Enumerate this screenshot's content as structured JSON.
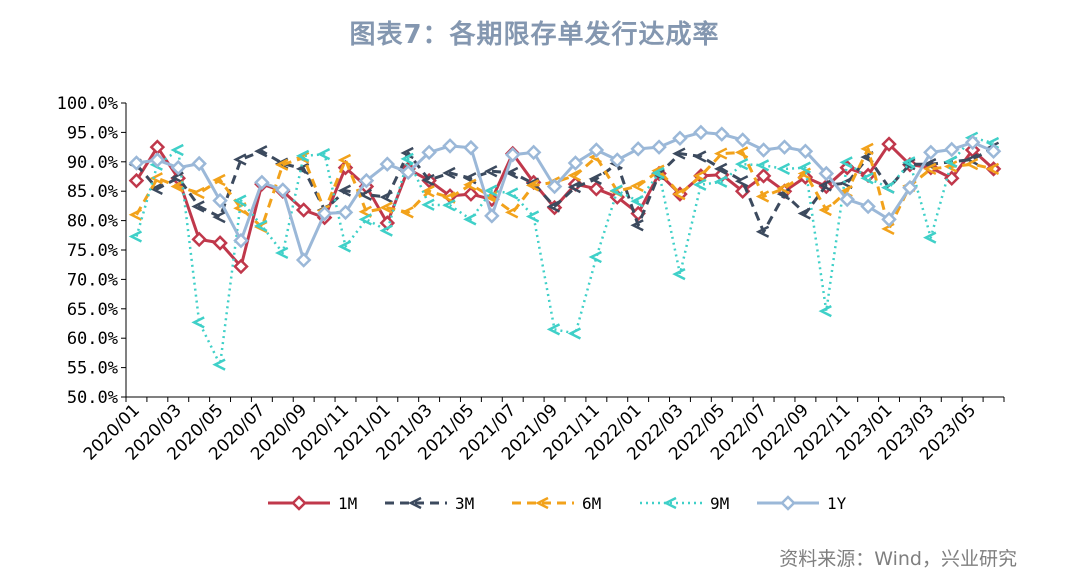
{
  "title": "图表7：各期限存单发行达成率",
  "source": "资料来源：Wind，兴业研究",
  "chart_data": {
    "type": "line",
    "title": "图表7：各期限存单发行达成率",
    "ylim": [
      50,
      100
    ],
    "y_ticks": [
      "100.0%",
      "95.0%",
      "90.0%",
      "85.0%",
      "80.0%",
      "75.0%",
      "70.0%",
      "65.0%",
      "60.0%",
      "55.0%",
      "50.0%"
    ],
    "x": [
      "2020/01",
      "2020/02",
      "2020/03",
      "2020/04",
      "2020/05",
      "2020/06",
      "2020/07",
      "2020/08",
      "2020/09",
      "2020/10",
      "2020/11",
      "2020/12",
      "2021/01",
      "2021/02",
      "2021/03",
      "2021/04",
      "2021/05",
      "2021/06",
      "2021/07",
      "2021/08",
      "2021/09",
      "2021/10",
      "2021/11",
      "2021/12",
      "2022/01",
      "2022/02",
      "2022/03",
      "2022/04",
      "2022/05",
      "2022/06",
      "2022/07",
      "2022/08",
      "2022/09",
      "2022/10",
      "2022/11",
      "2022/12",
      "2023/01",
      "2023/02",
      "2023/03",
      "2023/04",
      "2023/05",
      "2023/06"
    ],
    "x_tick_labels": [
      "2020/01",
      "2020/03",
      "2020/05",
      "2020/07",
      "2020/09",
      "2020/11",
      "2021/01",
      "2021/03",
      "2021/05",
      "2021/07",
      "2021/09",
      "2021/11",
      "2022/01",
      "2022/03",
      "2022/05",
      "2022/07",
      "2022/09",
      "2022/11",
      "2023/01",
      "2023/03",
      "2023/05"
    ],
    "grid": false,
    "legend_position": "bottom",
    "series": [
      {
        "name": "1M",
        "color": "#c0384b",
        "style": "solid",
        "marker": "diamond",
        "values": [
          86.8,
          92.5,
          87.2,
          76.8,
          76.2,
          72.2,
          86.2,
          85.0,
          81.8,
          80.5,
          89.0,
          85.8,
          79.6,
          88.8,
          86.8,
          84.2,
          84.5,
          83.6,
          91.4,
          86.5,
          82.2,
          86.2,
          85.4,
          84.0,
          81.2,
          88.0,
          84.5,
          87.6,
          87.8,
          85.0,
          87.6,
          85.0,
          87.4,
          85.8,
          89.0,
          87.7,
          93.0,
          89.5,
          89.0,
          87.2,
          92.0,
          88.8
        ]
      },
      {
        "name": "3M",
        "color": "#3c4a5e",
        "style": "dash",
        "marker": "chevron",
        "values": [
          89.5,
          85.4,
          87.3,
          82.4,
          80.6,
          90.4,
          91.8,
          89.7,
          88.8,
          81.8,
          85.1,
          84.4,
          84.0,
          91.5,
          86.9,
          88.1,
          87.2,
          88.4,
          88.1,
          86.3,
          82.4,
          85.7,
          87.1,
          89.7,
          79.2,
          87.9,
          91.4,
          90.9,
          88.8,
          86.7,
          78.1,
          84.5,
          81.2,
          86.0,
          86.4,
          90.8,
          85.6,
          89.6,
          89.6,
          90.0,
          90.4,
          92.4
        ]
      },
      {
        "name": "6M",
        "color": "#f2a21b",
        "style": "dash",
        "marker": "chevron",
        "values": [
          81.0,
          87.2,
          85.8,
          84.7,
          86.9,
          82.1,
          78.9,
          89.5,
          90.7,
          81.7,
          90.3,
          81.5,
          82.2,
          81.4,
          85.0,
          83.9,
          86.1,
          84.0,
          81.4,
          86.0,
          86.5,
          87.7,
          90.8,
          85.0,
          85.9,
          88.5,
          84.5,
          87.6,
          91.4,
          91.6,
          84.1,
          85.5,
          88.0,
          81.8,
          85.0,
          92.2,
          78.6,
          85.9,
          88.8,
          89.2,
          89.6,
          88.8
        ]
      },
      {
        "name": "9M",
        "color": "#3fd0c8",
        "style": "dot",
        "marker": "chevron",
        "values": [
          77.3,
          89.5,
          92.0,
          62.7,
          55.5,
          83.4,
          79.1,
          74.5,
          91.0,
          91.3,
          75.6,
          80.2,
          78.3,
          90.5,
          82.7,
          82.6,
          80.2,
          85.1,
          84.6,
          80.7,
          61.5,
          60.8,
          73.8,
          85.1,
          83.3,
          88.1,
          70.9,
          86.1,
          86.6,
          89.6,
          89.4,
          88.8,
          89.0,
          64.6,
          89.9,
          87.2,
          85.6,
          89.9,
          77.1,
          90.0,
          94.1,
          93.2
        ]
      },
      {
        "name": "1Y",
        "color": "#9bb8d8",
        "style": "solid",
        "marker": "diamond",
        "values": [
          89.8,
          90.3,
          89.0,
          89.7,
          83.4,
          76.6,
          86.5,
          85.2,
          73.3,
          81.2,
          81.4,
          86.8,
          89.6,
          88.2,
          91.6,
          92.7,
          92.4,
          80.8,
          91.2,
          91.6,
          85.8,
          89.8,
          92.0,
          90.3,
          92.2,
          92.5,
          94.0,
          95.0,
          94.7,
          93.7,
          92.0,
          92.5,
          91.8,
          88.0,
          83.6,
          82.4,
          80.2,
          85.6,
          91.6,
          92.1,
          93.3,
          91.8
        ]
      }
    ]
  }
}
